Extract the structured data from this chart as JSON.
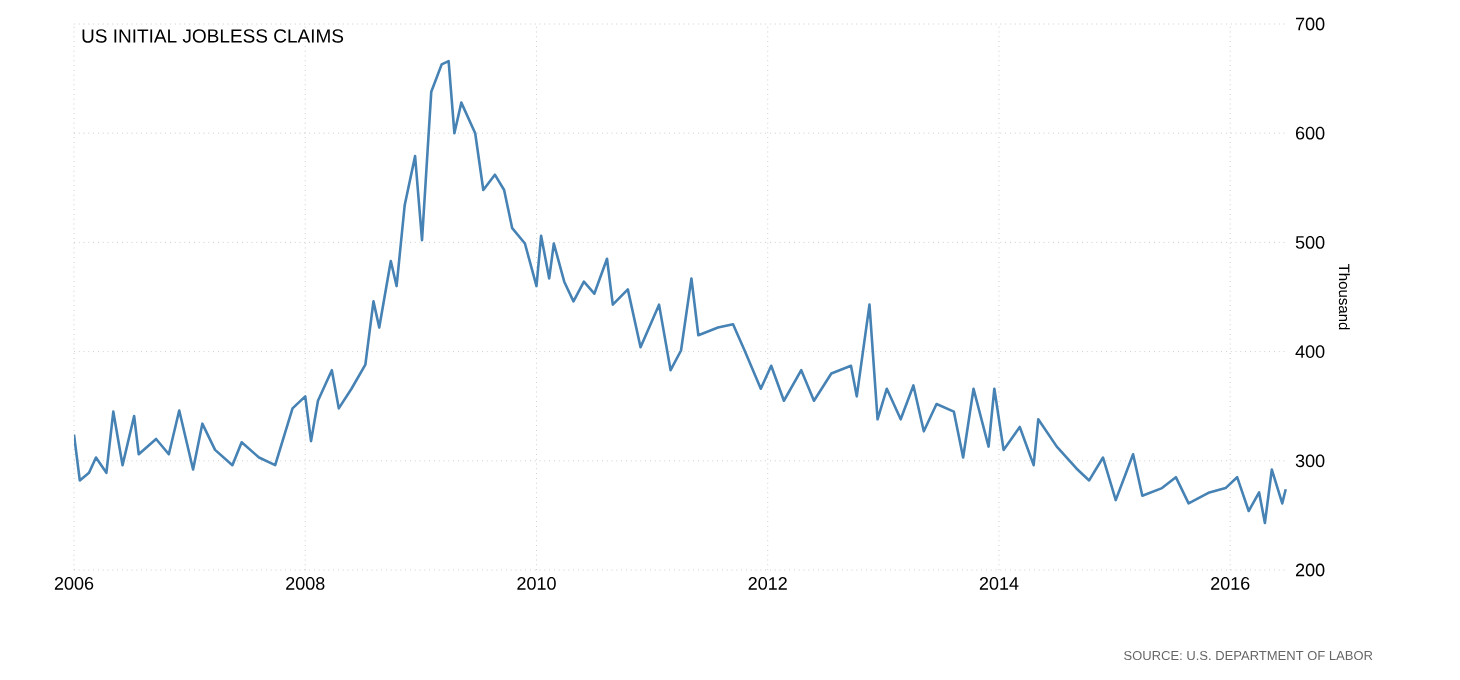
{
  "chart_data": {
    "type": "line",
    "title": "US INITIAL JOBLESS CLAIMS",
    "ylabel": "Thousand",
    "annotations": [
      "SOURCE: U.S. DEPARTMENT OF LABOR"
    ],
    "x": [
      2006.0,
      2006.05,
      2006.13,
      2006.19,
      2006.28,
      2006.34,
      2006.42,
      2006.52,
      2006.56,
      2006.71,
      2006.82,
      2006.91,
      2007.03,
      2007.11,
      2007.22,
      2007.37,
      2007.45,
      2007.6,
      2007.74,
      2007.89,
      2008.0,
      2008.05,
      2008.11,
      2008.23,
      2008.29,
      2008.4,
      2008.52,
      2008.59,
      2008.64,
      2008.74,
      2008.79,
      2008.86,
      2008.95,
      2009.01,
      2009.09,
      2009.18,
      2009.24,
      2009.29,
      2009.35,
      2009.47,
      2009.54,
      2009.64,
      2009.72,
      2009.79,
      2009.9,
      2010.0,
      2010.04,
      2010.11,
      2010.15,
      2010.24,
      2010.32,
      2010.41,
      2010.5,
      2010.61,
      2010.66,
      2010.79,
      2010.9,
      2011.06,
      2011.16,
      2011.25,
      2011.34,
      2011.4,
      2011.57,
      2011.7,
      2011.8,
      2011.94,
      2012.03,
      2012.14,
      2012.29,
      2012.4,
      2012.55,
      2012.72,
      2012.77,
      2012.88,
      2012.95,
      2013.03,
      2013.15,
      2013.26,
      2013.35,
      2013.46,
      2013.61,
      2013.69,
      2013.78,
      2013.91,
      2013.96,
      2014.04,
      2014.18,
      2014.3,
      2014.34,
      2014.5,
      2014.67,
      2014.78,
      2014.9,
      2015.01,
      2015.16,
      2015.24,
      2015.41,
      2015.53,
      2015.64,
      2015.82,
      2015.96,
      2016.06,
      2016.16,
      2016.25,
      2016.3,
      2016.36,
      2016.45,
      2016.48
    ],
    "series": [
      {
        "color": "#4682b4",
        "values": [
          324,
          282,
          289,
          303,
          289,
          345,
          296,
          341,
          306,
          320,
          306,
          346,
          292,
          334,
          310,
          296,
          317,
          303,
          296,
          348,
          359,
          318,
          355,
          383,
          348,
          366,
          388,
          446,
          422,
          483,
          460,
          534,
          579,
          502,
          638,
          663,
          666,
          600,
          628,
          600,
          548,
          562,
          548,
          513,
          499,
          460,
          506,
          467,
          499,
          464,
          446,
          464,
          453,
          485,
          443,
          457,
          404,
          443,
          383,
          401,
          467,
          415,
          422,
          425,
          401,
          366,
          387,
          355,
          383,
          355,
          380,
          387,
          359,
          443,
          338,
          366,
          338,
          369,
          327,
          352,
          345,
          303,
          366,
          313,
          366,
          310,
          331,
          296,
          338,
          313,
          293,
          282,
          303,
          264,
          306,
          268,
          275,
          285,
          261,
          271,
          275,
          285,
          254,
          271,
          243,
          292,
          261,
          274
        ]
      }
    ],
    "xlim": [
      2006,
      2016.5
    ],
    "ylim": [
      200,
      700
    ],
    "xticks": [
      2006,
      2008,
      2010,
      2012,
      2014,
      2016
    ],
    "yticks": [
      200,
      300,
      400,
      500,
      600,
      700
    ],
    "grid": true,
    "marker": "none",
    "line_style": "solid"
  }
}
